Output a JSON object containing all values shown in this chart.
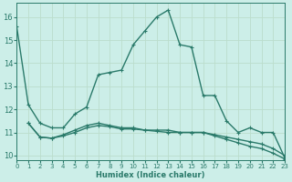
{
  "xlabel": "Humidex (Indice chaleur)",
  "bg_color": "#cceee8",
  "grid_color": "#bbddcc",
  "line_color": "#2a7a6a",
  "xlim": [
    0,
    23
  ],
  "ylim": [
    9.8,
    16.6
  ],
  "xticks": [
    0,
    1,
    2,
    3,
    4,
    5,
    6,
    7,
    8,
    9,
    10,
    11,
    12,
    13,
    14,
    15,
    16,
    17,
    18,
    19,
    20,
    21,
    22,
    23
  ],
  "yticks": [
    10,
    11,
    12,
    13,
    14,
    15,
    16
  ],
  "series": [
    {
      "x": [
        0,
        1,
        2,
        3,
        4,
        5,
        6,
        7,
        8,
        9,
        10,
        11,
        12,
        13,
        14,
        15,
        16,
        17,
        18,
        19,
        20,
        21,
        22,
        23
      ],
      "y": [
        15.6,
        12.2,
        11.4,
        11.2,
        11.2,
        11.8,
        12.1,
        13.5,
        13.6,
        13.7,
        14.8,
        15.4,
        16.0,
        16.3,
        14.8,
        14.7,
        12.6,
        12.6,
        11.5,
        11.0,
        11.2,
        11.0,
        11.0,
        9.9
      ]
    },
    {
      "x": [
        1,
        2,
        3,
        4,
        5,
        6,
        7,
        8,
        9,
        10,
        11,
        12,
        13,
        14,
        15,
        16,
        17,
        18,
        19,
        20,
        21,
        22,
        23
      ],
      "y": [
        11.4,
        10.8,
        10.75,
        10.9,
        11.1,
        11.3,
        11.4,
        11.3,
        11.2,
        11.2,
        11.1,
        11.1,
        11.1,
        11.0,
        11.0,
        11.0,
        10.9,
        10.8,
        10.7,
        10.6,
        10.5,
        10.3,
        10.0
      ]
    },
    {
      "x": [
        1,
        2,
        3,
        4,
        5,
        6,
        7,
        8,
        9,
        10,
        11,
        12,
        13,
        14,
        15,
        16,
        17,
        18,
        19,
        20,
        21,
        22,
        23
      ],
      "y": [
        11.4,
        10.8,
        10.75,
        10.85,
        11.0,
        11.2,
        11.3,
        11.25,
        11.15,
        11.15,
        11.1,
        11.05,
        11.0,
        11.0,
        11.0,
        11.0,
        10.85,
        10.7,
        10.55,
        10.4,
        10.3,
        10.1,
        9.85
      ]
    }
  ]
}
